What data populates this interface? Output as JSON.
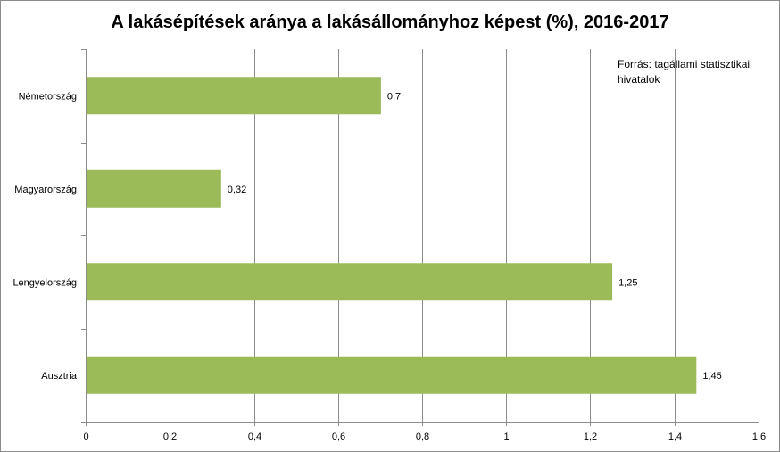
{
  "chart_data": {
    "type": "bar",
    "orientation": "horizontal",
    "title": "A lakásépítések aránya a lakásállományhoz képest (%), 2016-2017",
    "annotation": "Forrás: tagállami statisztikai hivatalok",
    "categories": [
      "Németország",
      "Magyarország",
      "Lengyelország",
      "Ausztria"
    ],
    "values": [
      0.7,
      0.32,
      1.25,
      1.45
    ],
    "value_labels": [
      "0,7",
      "0,32",
      "1,25",
      "1,45"
    ],
    "xlim": [
      0,
      1.6
    ],
    "x_ticks": [
      0,
      0.2,
      0.4,
      0.6,
      0.8,
      1,
      1.2,
      1.4,
      1.6
    ],
    "x_tick_labels": [
      "0",
      "0,2",
      "0,4",
      "0,6",
      "0,8",
      "1",
      "1,2",
      "1,4",
      "1,6"
    ],
    "grid": "vertical",
    "legend": "none",
    "bar_color": "#9bbb59",
    "grid_color": "#8c8c8c"
  }
}
